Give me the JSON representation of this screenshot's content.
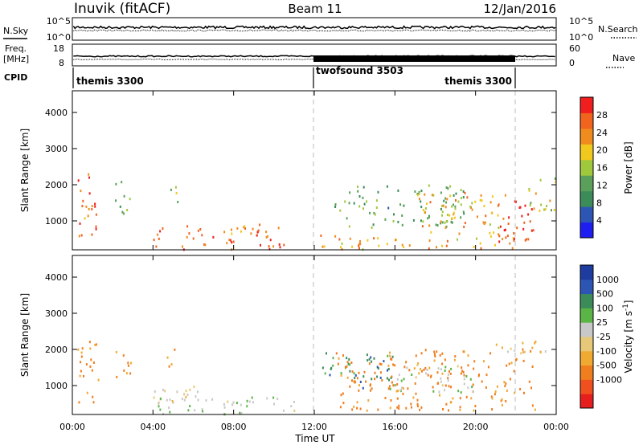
{
  "header": {
    "station": "Inuvik (fitACF)",
    "beam": "Beam 11",
    "date": "12/Jan/2016"
  },
  "top_panels": {
    "nsky_label": "N.Sky",
    "nsky_ticks": [
      "10^5",
      "10^0"
    ],
    "nsearch_label": "N.Search",
    "nsearch_ticks": [
      "10^5",
      "10^0"
    ],
    "freq_label_1": "Freq.",
    "freq_label_2": "[MHz]",
    "freq_ticks": [
      "18",
      "8"
    ],
    "nave_label": "Nave",
    "nave_ticks": [
      "60",
      "0"
    ],
    "cpid_label": "CPID",
    "cpid_segments": [
      {
        "name": "themis 3300",
        "start_hour": 0,
        "end_hour": 12
      },
      {
        "name": "twofsound 3503",
        "start_hour": 12,
        "end_hour": 22
      },
      {
        "name": "themis 3300",
        "start_hour": 22,
        "end_hour": 24
      }
    ]
  },
  "x_axis": {
    "ticks": [
      "00:00",
      "04:00",
      "08:00",
      "12:00",
      "16:00",
      "20:00",
      "00:00"
    ],
    "label": "Time UT"
  },
  "colors": {
    "power": [
      "#1e1ef0",
      "#2d55b4",
      "#3c8c5a",
      "#5aa05a",
      "#a0c83c",
      "#f0c81e",
      "#f08c1e",
      "#f0641e",
      "#f01e1e"
    ],
    "velocity": [
      "#e61e1e",
      "#f0501e",
      "#f07d1e",
      "#f0aa32",
      "#e6c878",
      "#c8c8c8",
      "#5ab446",
      "#3c8c5a",
      "#2d55b4",
      "#1e3ca0"
    ]
  },
  "chart_data": [
    {
      "type": "heatmap",
      "panel": "power",
      "ylabel": "Slant Range [km]",
      "yticks": [
        "1000",
        "2000",
        "3000",
        "4000"
      ],
      "ylim": [
        200,
        4600
      ],
      "xlim_hours": [
        0,
        24
      ],
      "colorbar_label": "Power [dB]",
      "colorbar_ticks": [
        "4",
        "8",
        "12",
        "16",
        "20",
        "24",
        "28"
      ],
      "color_range": [
        0,
        32
      ],
      "regions": [
        {
          "t0": 0.2,
          "t1": 1.3,
          "r0": 500,
          "r1": 2300,
          "value": 26
        },
        {
          "t0": 2.0,
          "t1": 2.9,
          "r0": 1200,
          "r1": 2100,
          "value": 14
        },
        {
          "t0": 4.6,
          "t1": 5.2,
          "r0": 1400,
          "r1": 2000,
          "value": 16
        },
        {
          "t0": 4.0,
          "t1": 10.5,
          "r0": 200,
          "r1": 900,
          "value": 26
        },
        {
          "t0": 12.2,
          "t1": 22.0,
          "r0": 200,
          "r1": 600,
          "value": 22
        },
        {
          "t0": 13.0,
          "t1": 19.5,
          "r0": 800,
          "r1": 2000,
          "value": 12
        },
        {
          "t0": 17.0,
          "t1": 21.5,
          "r0": 600,
          "r1": 1800,
          "value": 22
        },
        {
          "t0": 20.8,
          "t1": 23.0,
          "r0": 400,
          "r1": 1600,
          "value": 30
        },
        {
          "t0": 22.5,
          "t1": 24.0,
          "r0": 1200,
          "r1": 2200,
          "value": 18
        }
      ]
    },
    {
      "type": "heatmap",
      "panel": "velocity",
      "ylabel": "Slant Range [km]",
      "yticks": [
        "1000",
        "2000",
        "3000",
        "4000"
      ],
      "ylim": [
        200,
        4600
      ],
      "xlim_hours": [
        0,
        24
      ],
      "colorbar_label": "Velocity [m s^-1]",
      "colorbar_ticks": [
        "1000",
        "500",
        "100",
        "25",
        "-25",
        "-100",
        "-500",
        "-1000"
      ],
      "regions": [
        {
          "t0": 0.2,
          "t1": 1.3,
          "r0": 500,
          "r1": 2300,
          "value": -150
        },
        {
          "t0": 2.0,
          "t1": 2.9,
          "r0": 1200,
          "r1": 2100,
          "value": -150
        },
        {
          "t0": 4.6,
          "t1": 5.2,
          "r0": 1400,
          "r1": 2000,
          "value": -100
        },
        {
          "t0": 4.0,
          "t1": 7.0,
          "r0": 500,
          "r1": 1100,
          "value": 0
        },
        {
          "t0": 4.0,
          "t1": 11.0,
          "r0": 200,
          "r1": 700,
          "value": 80
        },
        {
          "t0": 12.2,
          "t1": 16.0,
          "r0": 900,
          "r1": 1900,
          "value": 700
        },
        {
          "t0": 13.0,
          "t1": 23.0,
          "r0": 300,
          "r1": 2000,
          "value": -150
        },
        {
          "t0": 21.0,
          "t1": 23.5,
          "r0": 1800,
          "r1": 2300,
          "value": 0
        },
        {
          "t0": 16.0,
          "t1": 20.0,
          "r0": 800,
          "r1": 1600,
          "value": 80
        }
      ]
    }
  ]
}
